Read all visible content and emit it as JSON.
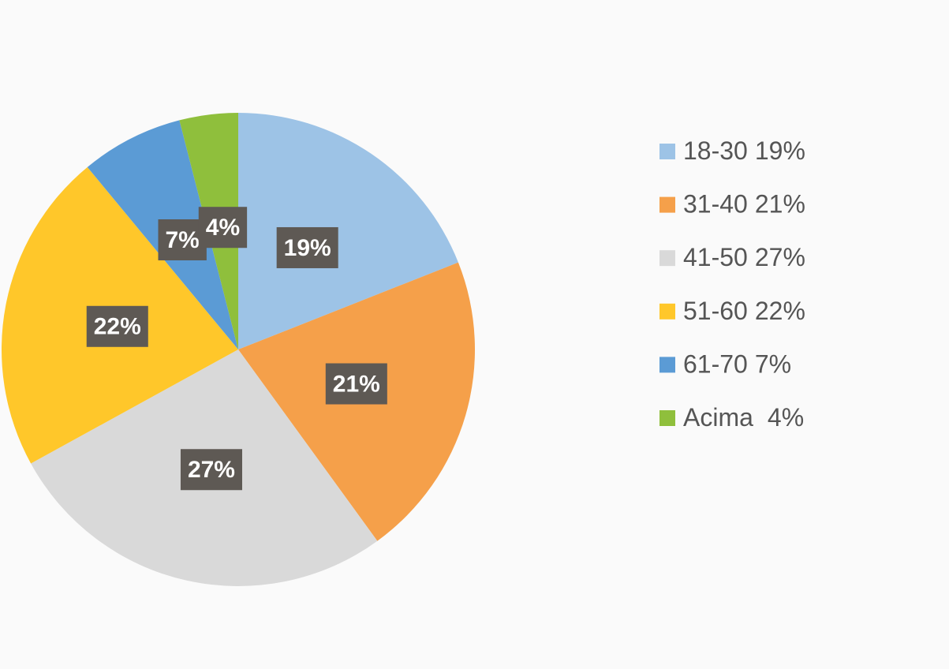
{
  "chart_data": {
    "type": "pie",
    "categories": [
      "18-30",
      "31-40",
      "41-50",
      "51-60",
      "61-70",
      "Acima"
    ],
    "values": [
      19,
      21,
      27,
      22,
      7,
      4
    ],
    "value_labels": [
      "19%",
      "21%",
      "27%",
      "22%",
      "7%",
      "4%"
    ],
    "colors": [
      "#9dc3e6",
      "#f5a04a",
      "#d9d9d9",
      "#ffc72a",
      "#5b9bd5",
      "#8fbf3c"
    ],
    "legend": "right"
  }
}
